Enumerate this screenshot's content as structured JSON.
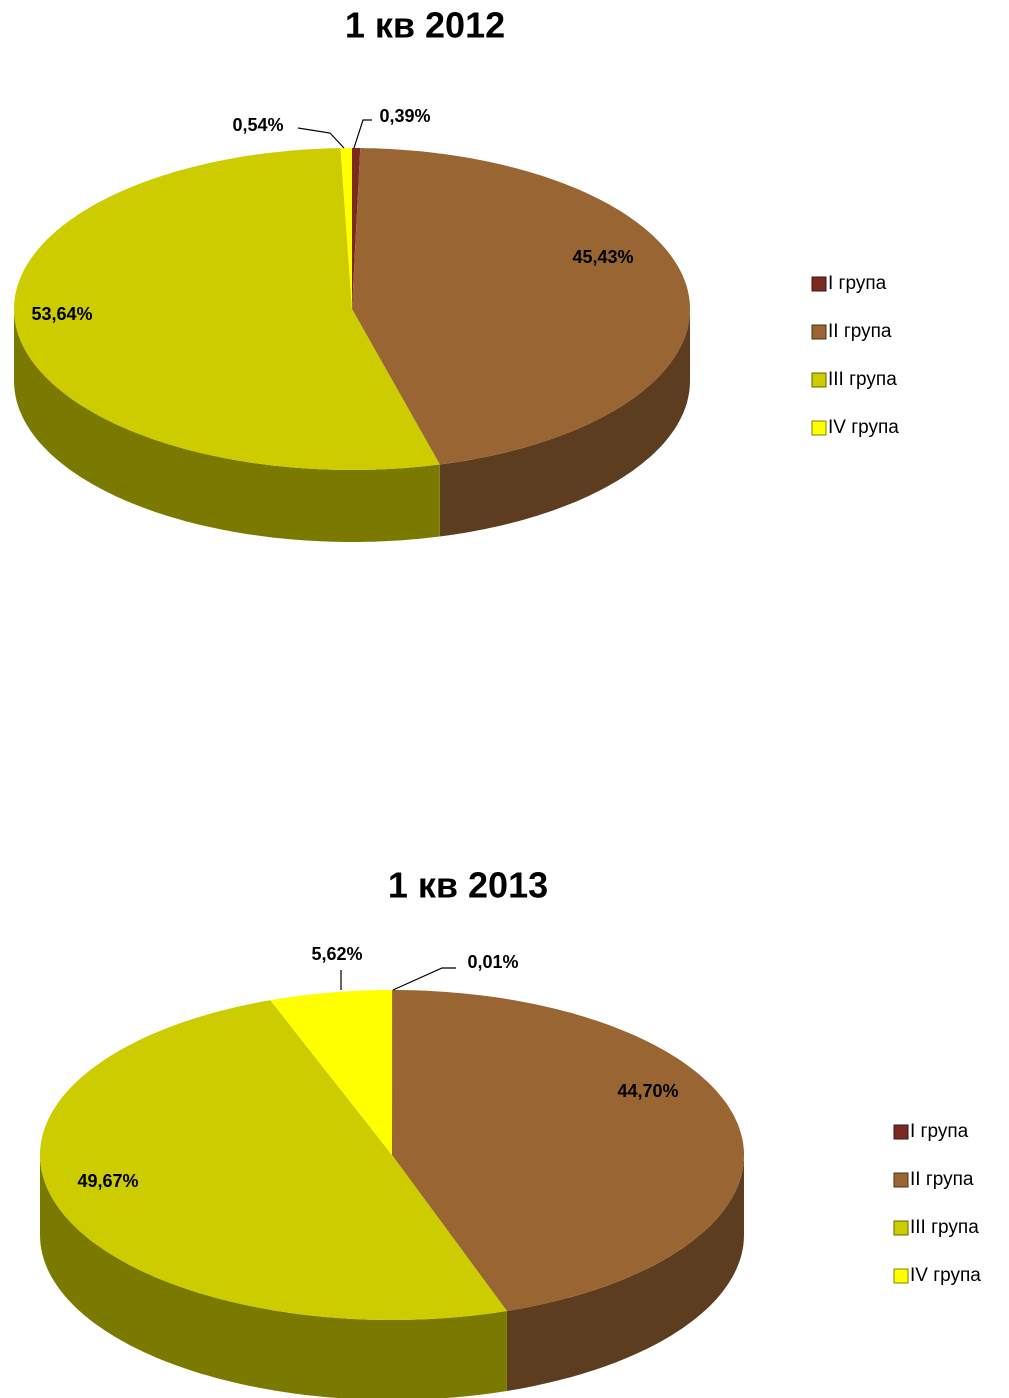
{
  "chart_data": [
    {
      "type": "pie",
      "title": "1 кв 2012",
      "categories": [
        "I група",
        "II група",
        "III група",
        "IV група"
      ],
      "values": [
        0.39,
        45.43,
        53.64,
        0.54
      ],
      "value_labels": [
        "0,39%",
        "45,43%",
        "53,64%",
        "0,54%"
      ],
      "colors": [
        "#7b2a1f",
        "#996633",
        "#cccc00",
        "#ffff00"
      ],
      "legend": "right"
    },
    {
      "type": "pie",
      "title": "1 кв 2013",
      "categories": [
        "I група",
        "II група",
        "III група",
        "IV група"
      ],
      "values": [
        0.01,
        44.7,
        49.67,
        5.62
      ],
      "value_labels": [
        "0,01%",
        "44,70%",
        "49,67%",
        "5,62%"
      ],
      "colors": [
        "#7b2a1f",
        "#996633",
        "#cccc00",
        "#ffff00"
      ],
      "legend": "right"
    }
  ]
}
